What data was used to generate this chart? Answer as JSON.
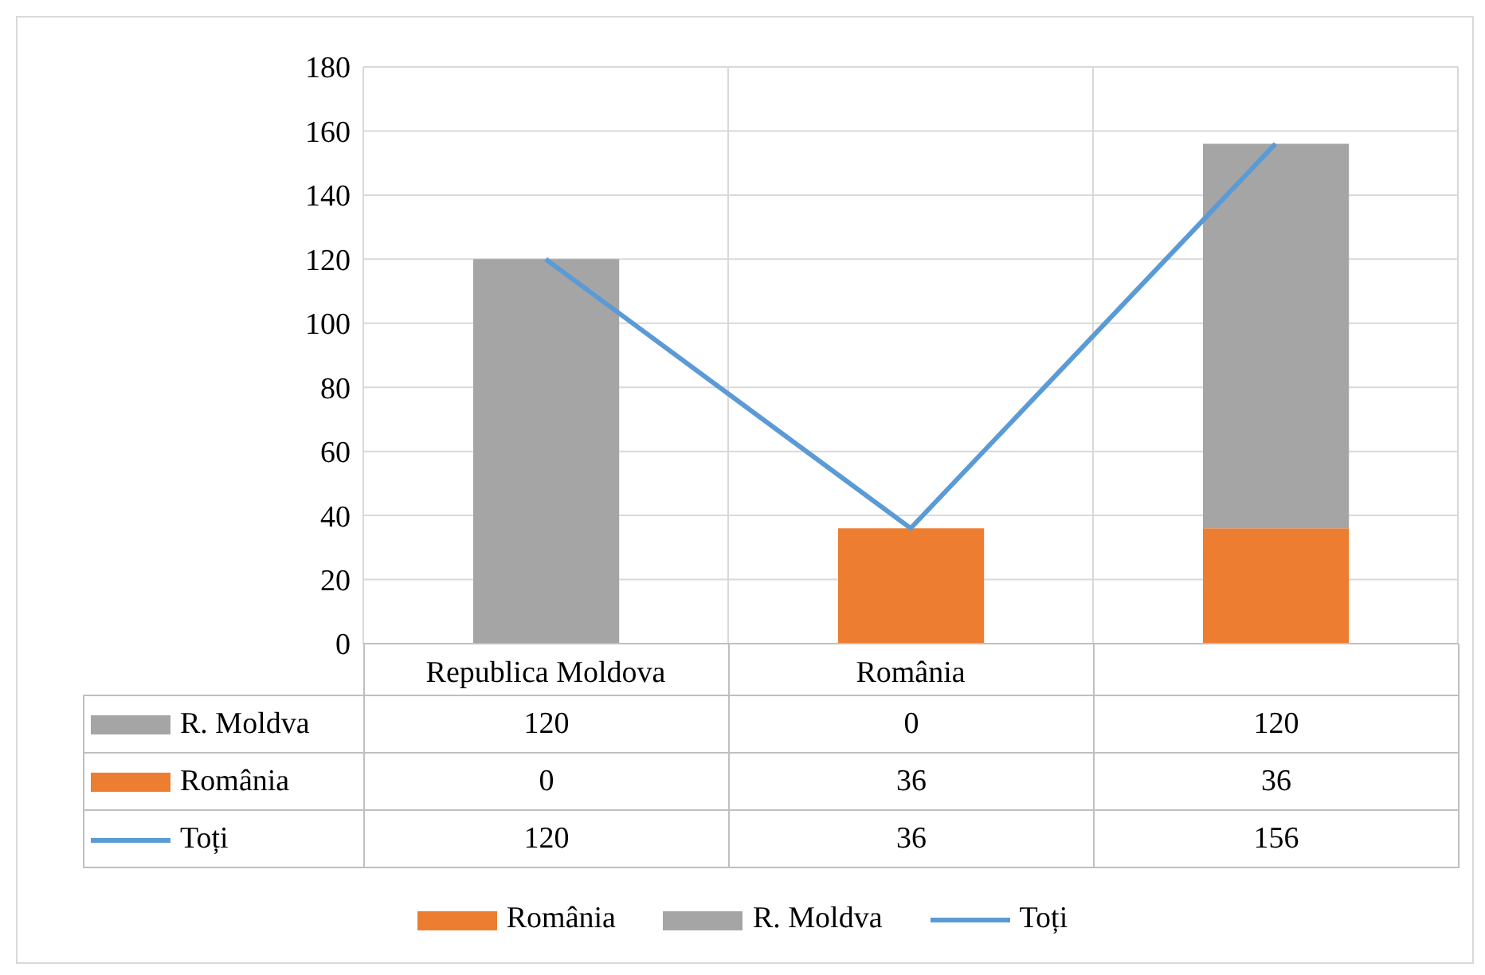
{
  "chart_data": {
    "type": "bar",
    "categories": [
      "Republica Moldova",
      "România",
      null
    ],
    "series": [
      {
        "name": "România",
        "color": "#ed7d31",
        "values": [
          0,
          36,
          36
        ]
      },
      {
        "name": "R. Moldva",
        "color": "#a5a5a5",
        "values": [
          120,
          0,
          120
        ]
      },
      {
        "name": "Toți",
        "type": "line",
        "color": "#5b9bd5",
        "values": [
          120,
          36,
          156
        ]
      }
    ],
    "stacked": true,
    "ylim": [
      0,
      180
    ],
    "yticks": [
      0,
      20,
      40,
      60,
      80,
      100,
      120,
      140,
      160,
      180
    ],
    "grid": true,
    "legend": "bottom",
    "data_labels": true,
    "marker": "none"
  }
}
